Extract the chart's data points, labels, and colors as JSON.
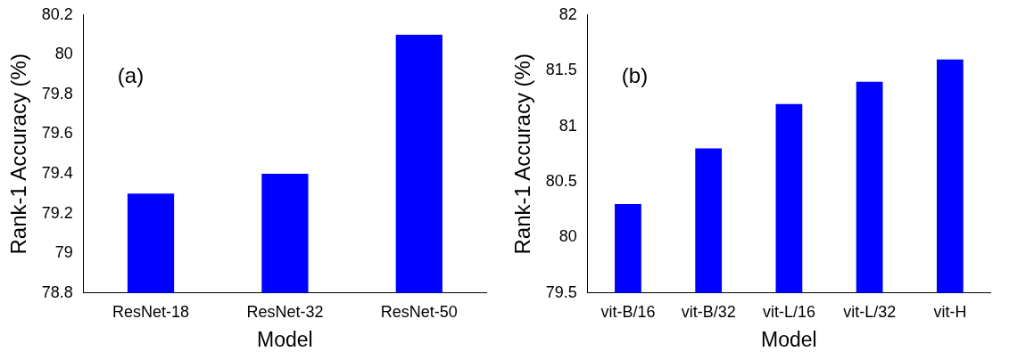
{
  "chart_data": [
    {
      "type": "bar",
      "xlabel": "Model",
      "ylabel": "Rank-1 Accuracy (%)",
      "annotations": [
        "(a)"
      ],
      "categories": [
        "ResNet-18",
        "ResNet-32",
        "ResNet-50"
      ],
      "values": [
        79.3,
        79.4,
        80.1
      ],
      "color": "#0000ff",
      "ylim": [
        78.8,
        80.2
      ],
      "yticks": [
        78.8,
        79,
        79.2,
        79.4,
        79.6,
        79.8,
        80,
        80.2
      ],
      "grid": false,
      "legend": false
    },
    {
      "type": "bar",
      "xlabel": "Model",
      "ylabel": "Rank-1 Accuracy (%)",
      "annotations": [
        "(b)"
      ],
      "categories": [
        "vit-B/16",
        "vit-B/32",
        "vit-L/16",
        "vit-L/32",
        "vit-H"
      ],
      "values": [
        80.3,
        80.8,
        81.2,
        81.4,
        81.6
      ],
      "color": "#0000ff",
      "ylim": [
        79.5,
        82
      ],
      "yticks": [
        79.5,
        80,
        80.5,
        81,
        81.5,
        82
      ],
      "grid": false,
      "legend": false
    }
  ]
}
